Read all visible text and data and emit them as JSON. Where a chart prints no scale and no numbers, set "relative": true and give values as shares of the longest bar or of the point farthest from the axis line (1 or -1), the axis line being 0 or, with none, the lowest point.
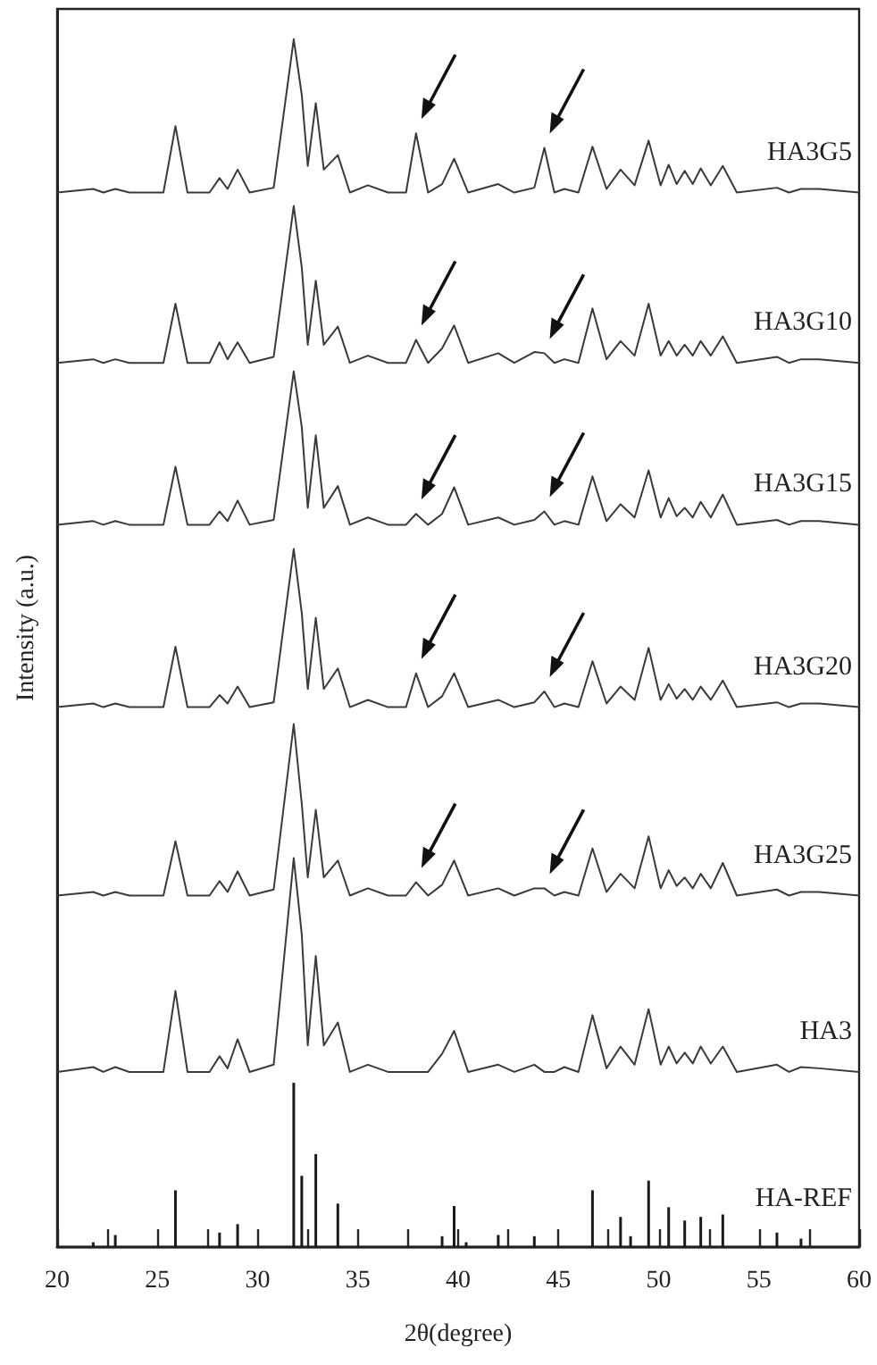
{
  "chart_data": {
    "type": "line",
    "relative": true,
    "xlabel": "2θ(degree)",
    "ylabel": "Intensity (a.u.)",
    "xlim": [
      20,
      60
    ],
    "xticks": [
      20,
      {
        "value": 22.5,
        "label": null
      },
      25,
      {
        "value": 27.5,
        "label": null
      },
      30,
      {
        "value": 32.5,
        "label": null
      },
      35,
      {
        "value": 37.5,
        "label": null
      },
      40,
      {
        "value": 42.5,
        "label": null
      },
      45,
      {
        "value": 47.5,
        "label": null
      },
      50,
      {
        "value": 52.5,
        "label": null
      },
      55,
      {
        "value": 57.5,
        "label": null
      },
      60
    ],
    "x": [
      20,
      21.8,
      22.3,
      22.9,
      23.6,
      25.3,
      25.9,
      26.5,
      27.6,
      28.1,
      28.5,
      29.0,
      29.6,
      30.8,
      31.8,
      32.2,
      32.5,
      32.9,
      33.3,
      34.0,
      34.6,
      35.5,
      36.5,
      37.4,
      37.9,
      38.5,
      39.2,
      39.8,
      40.5,
      42.0,
      42.8,
      43.8,
      44.3,
      44.8,
      45.3,
      46.0,
      46.7,
      47.4,
      48.1,
      48.8,
      49.5,
      50.1,
      50.5,
      50.9,
      51.3,
      51.7,
      52.1,
      52.6,
      53.2,
      53.9,
      55.9,
      56.5,
      57.1,
      58.0,
      60
    ],
    "series": [
      {
        "name": "HA3G5",
        "color": "#3a3a3a",
        "values": [
          0.873,
          0.876,
          0.873,
          0.876,
          0.873,
          0.873,
          0.928,
          0.873,
          0.873,
          0.885,
          0.876,
          0.892,
          0.873,
          0.877,
          1.0,
          0.954,
          0.895,
          0.947,
          0.892,
          0.904,
          0.873,
          0.879,
          0.873,
          0.873,
          0.922,
          0.873,
          0.88,
          0.901,
          0.873,
          0.88,
          0.873,
          0.877,
          0.91,
          0.873,
          0.876,
          0.873,
          0.911,
          0.876,
          0.892,
          0.879,
          0.916,
          0.879,
          0.896,
          0.88,
          0.891,
          0.88,
          0.893,
          0.879,
          0.895,
          0.873,
          0.877,
          0.873,
          0.876,
          0.876,
          0.873
        ]
      },
      {
        "name": "HA3G10",
        "color": "#3a3a3a",
        "values": [
          0.732,
          0.735,
          0.732,
          0.735,
          0.732,
          0.732,
          0.781,
          0.732,
          0.732,
          0.749,
          0.735,
          0.749,
          0.732,
          0.737,
          0.862,
          0.811,
          0.747,
          0.8,
          0.747,
          0.762,
          0.732,
          0.738,
          0.732,
          0.732,
          0.751,
          0.732,
          0.744,
          0.763,
          0.732,
          0.74,
          0.732,
          0.741,
          0.74,
          0.732,
          0.735,
          0.732,
          0.777,
          0.735,
          0.75,
          0.738,
          0.781,
          0.738,
          0.75,
          0.738,
          0.747,
          0.738,
          0.75,
          0.738,
          0.754,
          0.732,
          0.737,
          0.732,
          0.735,
          0.735,
          0.732
        ]
      },
      {
        "name": "HA3G15",
        "color": "#3a3a3a",
        "values": [
          0.598,
          0.601,
          0.598,
          0.601,
          0.598,
          0.598,
          0.646,
          0.598,
          0.598,
          0.609,
          0.601,
          0.618,
          0.598,
          0.602,
          0.725,
          0.679,
          0.612,
          0.672,
          0.612,
          0.63,
          0.598,
          0.604,
          0.598,
          0.598,
          0.607,
          0.598,
          0.607,
          0.629,
          0.598,
          0.604,
          0.598,
          0.602,
          0.609,
          0.598,
          0.601,
          0.598,
          0.638,
          0.601,
          0.615,
          0.604,
          0.643,
          0.604,
          0.62,
          0.605,
          0.612,
          0.604,
          0.617,
          0.604,
          0.623,
          0.598,
          0.602,
          0.598,
          0.601,
          0.601,
          0.598
        ]
      },
      {
        "name": "HA3G20",
        "color": "#3a3a3a",
        "values": [
          0.447,
          0.45,
          0.447,
          0.45,
          0.447,
          0.447,
          0.497,
          0.447,
          0.447,
          0.457,
          0.45,
          0.464,
          0.447,
          0.451,
          0.578,
          0.525,
          0.462,
          0.521,
          0.462,
          0.479,
          0.447,
          0.453,
          0.447,
          0.447,
          0.475,
          0.447,
          0.456,
          0.475,
          0.447,
          0.453,
          0.447,
          0.451,
          0.46,
          0.447,
          0.45,
          0.447,
          0.485,
          0.45,
          0.464,
          0.453,
          0.496,
          0.453,
          0.466,
          0.454,
          0.462,
          0.453,
          0.464,
          0.453,
          0.469,
          0.447,
          0.451,
          0.447,
          0.45,
          0.45,
          0.447
        ]
      },
      {
        "name": "HA3G25",
        "color": "#3a3a3a",
        "values": [
          0.291,
          0.294,
          0.291,
          0.294,
          0.291,
          0.291,
          0.336,
          0.291,
          0.291,
          0.303,
          0.294,
          0.311,
          0.291,
          0.296,
          0.433,
          0.367,
          0.306,
          0.362,
          0.306,
          0.32,
          0.291,
          0.297,
          0.291,
          0.291,
          0.302,
          0.291,
          0.3,
          0.32,
          0.291,
          0.297,
          0.291,
          0.297,
          0.297,
          0.291,
          0.294,
          0.291,
          0.33,
          0.294,
          0.309,
          0.297,
          0.34,
          0.297,
          0.312,
          0.299,
          0.306,
          0.297,
          0.309,
          0.297,
          0.318,
          0.291,
          0.296,
          0.291,
          0.294,
          0.294,
          0.291
        ]
      },
      {
        "name": "HA3",
        "color": "#3a3a3a",
        "values": [
          0.145,
          0.149,
          0.145,
          0.149,
          0.145,
          0.145,
          0.212,
          0.145,
          0.145,
          0.158,
          0.148,
          0.172,
          0.145,
          0.151,
          0.322,
          0.259,
          0.167,
          0.241,
          0.167,
          0.186,
          0.145,
          0.151,
          0.145,
          0.145,
          0.145,
          0.145,
          0.16,
          0.179,
          0.145,
          0.151,
          0.145,
          0.151,
          0.145,
          0.145,
          0.149,
          0.145,
          0.192,
          0.148,
          0.166,
          0.151,
          0.197,
          0.151,
          0.166,
          0.152,
          0.161,
          0.152,
          0.166,
          0.152,
          0.166,
          0.145,
          0.151,
          0.145,
          0.149,
          0.148,
          0.145
        ]
      },
      {
        "name": "HA-REF",
        "type": "bar",
        "color": "#1a1a1a",
        "x": [
          21.8,
          22.9,
          25.9,
          28.1,
          29.0,
          31.8,
          32.2,
          32.9,
          34.0,
          39.2,
          39.8,
          40.4,
          42.0,
          43.8,
          46.7,
          48.1,
          48.6,
          49.5,
          50.5,
          51.3,
          52.1,
          53.2,
          55.9,
          57.1
        ],
        "values": [
          0.004,
          0.01,
          0.047,
          0.012,
          0.019,
          0.136,
          0.059,
          0.077,
          0.036,
          0.009,
          0.034,
          0.004,
          0.01,
          0.009,
          0.047,
          0.025,
          0.009,
          0.055,
          0.033,
          0.022,
          0.025,
          0.027,
          0.012,
          0.007
        ]
      }
    ],
    "legend": false
  }
}
